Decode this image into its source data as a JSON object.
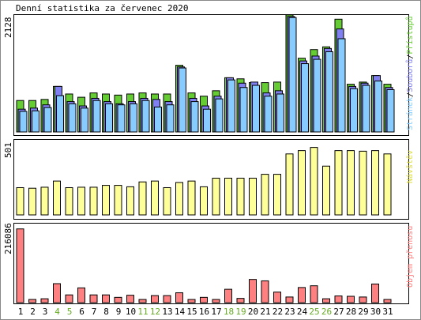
{
  "chart_data": [
    {
      "type": "bar",
      "title": "Denní statistika za červenec 2020",
      "ymax_label": "2128",
      "side_label": {
        "parts": [
          "Stránek",
          "Souborů",
          "Přístupů"
        ],
        "separator": "/"
      },
      "categories": [
        "1",
        "2",
        "3",
        "4",
        "5",
        "6",
        "7",
        "8",
        "9",
        "10",
        "11",
        "12",
        "13",
        "14",
        "15",
        "16",
        "17",
        "18",
        "19",
        "20",
        "21",
        "22",
        "23",
        "24",
        "25",
        "26",
        "27",
        "28",
        "29",
        "30",
        "31"
      ],
      "series": [
        {
          "name": "Přístupů",
          "values": [
            580,
            580,
            600,
            840,
            700,
            640,
            720,
            700,
            680,
            700,
            720,
            700,
            700,
            1230,
            720,
            660,
            760,
            1000,
            980,
            910,
            910,
            920,
            2160,
            1360,
            1520,
            1570,
            2080,
            880,
            920,
            1040,
            880
          ]
        },
        {
          "name": "Souborů",
          "values": [
            420,
            440,
            500,
            840,
            560,
            480,
            620,
            560,
            520,
            560,
            620,
            600,
            560,
            1200,
            620,
            480,
            660,
            1000,
            900,
            920,
            720,
            760,
            2130,
            1310,
            1400,
            1540,
            1900,
            840,
            900,
            1040,
            820
          ]
        },
        {
          "name": "Stránek",
          "values": [
            380,
            390,
            450,
            670,
            520,
            440,
            580,
            520,
            500,
            520,
            580,
            460,
            500,
            1180,
            560,
            420,
            610,
            960,
            820,
            860,
            660,
            700,
            2110,
            1260,
            1340,
            1480,
            1720,
            800,
            860,
            940,
            780
          ]
        }
      ],
      "colors": {
        "Přístupů": "#66cc33",
        "Souborů": "#8080f0",
        "Stránek": "#88ccff"
      },
      "ylim": [
        0,
        2128
      ]
    },
    {
      "type": "bar",
      "ymax_label": "501",
      "side_label": "Návštěv",
      "categories": [
        "1",
        "2",
        "3",
        "4",
        "5",
        "6",
        "7",
        "8",
        "9",
        "10",
        "11",
        "12",
        "13",
        "14",
        "15",
        "16",
        "17",
        "18",
        "19",
        "20",
        "21",
        "22",
        "23",
        "24",
        "25",
        "26",
        "27",
        "28",
        "29",
        "30",
        "31"
      ],
      "series": [
        {
          "name": "Návštěv",
          "values": [
            190,
            186,
            193,
            236,
            190,
            193,
            193,
            206,
            206,
            196,
            230,
            236,
            190,
            226,
            236,
            196,
            256,
            256,
            256,
            256,
            283,
            283,
            425,
            448,
            470,
            340,
            448,
            448,
            444,
            448,
            425
          ]
        }
      ],
      "colors": {
        "Návštěv": "#ffff99"
      },
      "ylim": [
        0,
        501
      ]
    },
    {
      "type": "bar",
      "ymax_label": "216086",
      "side_label": "Objem přenosu",
      "categories": [
        "1",
        "2",
        "3",
        "4",
        "5",
        "6",
        "7",
        "8",
        "9",
        "10",
        "11",
        "12",
        "13",
        "14",
        "15",
        "16",
        "17",
        "18",
        "19",
        "20",
        "21",
        "22",
        "23",
        "24",
        "25",
        "26",
        "27",
        "28",
        "29",
        "30",
        "31"
      ],
      "series": [
        {
          "name": "Objem přenosu",
          "values": [
            210000,
            9000,
            11000,
            54000,
            22000,
            42000,
            22000,
            22000,
            15000,
            21000,
            9000,
            20000,
            20000,
            28000,
            9000,
            15000,
            9000,
            38000,
            12000,
            66000,
            62000,
            30000,
            16000,
            43000,
            48000,
            11000,
            19000,
            18000,
            16000,
            53000,
            9000
          ]
        }
      ],
      "colors": {
        "Objem přenosu": "#ff8080"
      },
      "ylim": [
        0,
        216086
      ]
    }
  ],
  "x_labels": [
    {
      "text": "1",
      "color": "#000000"
    },
    {
      "text": "2",
      "color": "#000000"
    },
    {
      "text": "3",
      "color": "#000000"
    },
    {
      "text": "4",
      "color": "#66aa22"
    },
    {
      "text": "5",
      "color": "#66aa22"
    },
    {
      "text": "6",
      "color": "#000000"
    },
    {
      "text": "7",
      "color": "#000000"
    },
    {
      "text": "8",
      "color": "#000000"
    },
    {
      "text": "9",
      "color": "#000000"
    },
    {
      "text": "10",
      "color": "#000000"
    },
    {
      "text": "11",
      "color": "#66aa22"
    },
    {
      "text": "12",
      "color": "#66aa22"
    },
    {
      "text": "13",
      "color": "#000000"
    },
    {
      "text": "14",
      "color": "#000000"
    },
    {
      "text": "15",
      "color": "#000000"
    },
    {
      "text": "16",
      "color": "#000000"
    },
    {
      "text": "17",
      "color": "#000000"
    },
    {
      "text": "18",
      "color": "#66aa22"
    },
    {
      "text": "19",
      "color": "#66aa22"
    },
    {
      "text": "20",
      "color": "#000000"
    },
    {
      "text": "21",
      "color": "#000000"
    },
    {
      "text": "22",
      "color": "#000000"
    },
    {
      "text": "23",
      "color": "#000000"
    },
    {
      "text": "24",
      "color": "#000000"
    },
    {
      "text": "25",
      "color": "#66aa22"
    },
    {
      "text": "26",
      "color": "#66aa22"
    },
    {
      "text": "27",
      "color": "#000000"
    },
    {
      "text": "28",
      "color": "#000000"
    },
    {
      "text": "29",
      "color": "#000000"
    },
    {
      "text": "30",
      "color": "#000000"
    },
    {
      "text": "31",
      "color": "#000000"
    }
  ],
  "colors": {
    "background": "#ffffff",
    "frame": "#000000",
    "outer_border": "#888888"
  }
}
